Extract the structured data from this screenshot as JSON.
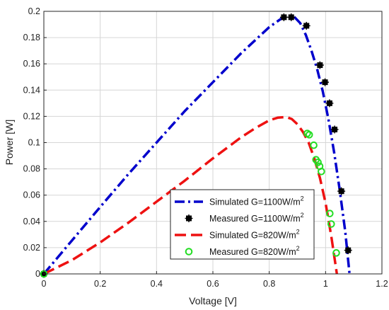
{
  "chart_data": {
    "type": "line",
    "xlabel": "Voltage [V]",
    "ylabel": "Power [W]",
    "xlim": [
      0,
      1.2
    ],
    "ylim": [
      0,
      0.2
    ],
    "xticks": [
      "0",
      "0.2",
      "0.4",
      "0.6",
      "0.8",
      "1",
      "1.2"
    ],
    "yticks": [
      "0",
      "0.02",
      "0.04",
      "0.06",
      "0.08",
      "0.1",
      "0.12",
      "0.14",
      "0.16",
      "0.18",
      "0.2"
    ],
    "grid": true,
    "legend_placement": "lower-right",
    "series": [
      {
        "name": "Simulated G=1100W/m",
        "name_sup": "2",
        "kind": "line",
        "style": "dashdot",
        "color": "#0000cc",
        "x": [
          0,
          0.1,
          0.2,
          0.3,
          0.4,
          0.5,
          0.6,
          0.7,
          0.75,
          0.8,
          0.84,
          0.87,
          0.89,
          0.91,
          0.93,
          0.95,
          0.97,
          0.99,
          1.01,
          1.03,
          1.05,
          1.07,
          1.085
        ],
        "y": [
          0,
          0.0255,
          0.051,
          0.076,
          0.1,
          0.124,
          0.146,
          0.168,
          0.178,
          0.188,
          0.194,
          0.1965,
          0.1955,
          0.191,
          0.182,
          0.17,
          0.156,
          0.139,
          0.118,
          0.093,
          0.064,
          0.032,
          0
        ]
      },
      {
        "name": "Measured G=1100W/m",
        "name_sup": "2",
        "kind": "marker",
        "marker": "filled-square",
        "color": "#000000",
        "x": [
          0,
          0.852,
          0.878,
          0.932,
          0.98,
          0.998,
          1.014,
          1.032,
          1.056,
          1.08
        ],
        "y": [
          0,
          0.1955,
          0.1955,
          0.189,
          0.159,
          0.146,
          0.13,
          0.11,
          0.063,
          0.018
        ]
      },
      {
        "name": "Simulated G=820W/m",
        "name_sup": "2",
        "kind": "line",
        "style": "dashed",
        "color": "#ee1111",
        "x": [
          0,
          0.1,
          0.2,
          0.3,
          0.4,
          0.5,
          0.6,
          0.7,
          0.75,
          0.8,
          0.83,
          0.86,
          0.88,
          0.9,
          0.92,
          0.94,
          0.96,
          0.98,
          1.0,
          1.02,
          1.04
        ],
        "y": [
          0,
          0.0105,
          0.024,
          0.039,
          0.055,
          0.071,
          0.088,
          0.104,
          0.111,
          0.117,
          0.119,
          0.1195,
          0.118,
          0.114,
          0.108,
          0.1,
          0.088,
          0.073,
          0.054,
          0.029,
          0
        ]
      },
      {
        "name": "Measured G=820W/m",
        "name_sup": "2",
        "kind": "marker",
        "marker": "open-circle",
        "color": "#22dd22",
        "x": [
          0,
          0.935,
          0.942,
          0.958,
          0.966,
          0.973,
          0.979,
          0.985,
          1.015,
          1.02,
          1.038
        ],
        "y": [
          0,
          0.107,
          0.106,
          0.098,
          0.087,
          0.085,
          0.082,
          0.078,
          0.046,
          0.038,
          0.016
        ]
      }
    ]
  }
}
